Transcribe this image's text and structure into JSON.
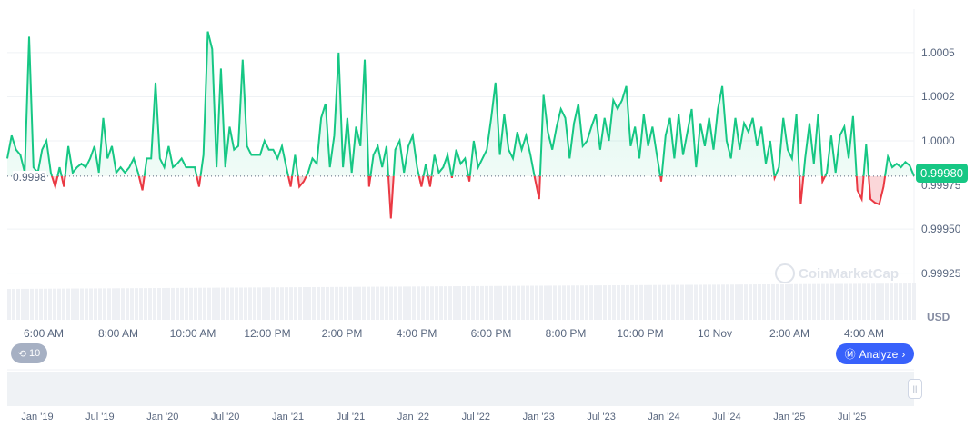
{
  "chart_data": {
    "type": "line",
    "currency_label": "USD",
    "current_price": "0.99980",
    "baseline_label": "0.9998",
    "baseline": 0.9998,
    "ylim": [
      0.99908,
      1.00068
    ],
    "y_ticks": [
      {
        "value": 1.0005,
        "label": "1.0005"
      },
      {
        "value": 1.00025,
        "label": "1.0002"
      },
      {
        "value": 1.0,
        "label": "1.0000"
      },
      {
        "value": 0.99975,
        "label": "0.99975"
      },
      {
        "value": 0.9995,
        "label": "0.99950"
      },
      {
        "value": 0.99925,
        "label": "0.99925"
      }
    ],
    "x_tick_labels": [
      "6:00 AM",
      "8:00 AM",
      "10:00 AM",
      "12:00 PM",
      "2:00 PM",
      "4:00 PM",
      "6:00 PM",
      "8:00 PM",
      "10:00 PM",
      "10 Nov",
      "2:00 AM",
      "4:00 AM"
    ],
    "navigator_labels": [
      "Jan '19",
      "Jul '19",
      "Jan '20",
      "Jul '20",
      "Jan '21",
      "Jul '21",
      "Jan '22",
      "Jul '22",
      "Jan '23",
      "Jul '23",
      "Jan '24",
      "Jul '24",
      "Jan '25",
      "Jul '25"
    ],
    "colors": {
      "up": "#16c784",
      "down": "#ea3943",
      "accent": "#3861fb"
    },
    "values": [
      0.9999,
      1.00003,
      0.99995,
      0.99992,
      0.99982,
      1.00059,
      0.99985,
      0.99982,
      0.99995,
      1.0,
      0.99982,
      0.99974,
      0.99985,
      0.99974,
      0.99997,
      0.99982,
      0.99985,
      0.99987,
      0.99985,
      0.9999,
      0.99997,
      0.99982,
      1.00013,
      0.9999,
      0.99997,
      0.99982,
      0.99985,
      0.99982,
      0.99985,
      0.9999,
      0.99982,
      0.99972,
      0.9999,
      0.9999,
      1.00033,
      0.9999,
      0.99985,
      0.99997,
      0.99985,
      0.99987,
      0.9999,
      0.99985,
      0.99985,
      0.99985,
      0.99974,
      0.99992,
      1.00062,
      1.00052,
      0.99985,
      1.00041,
      0.99985,
      1.00008,
      0.99995,
      0.99997,
      1.00046,
      0.99997,
      0.99992,
      0.99992,
      0.99992,
      1.0,
      0.99995,
      0.99995,
      0.9999,
      0.99997,
      0.99985,
      0.99974,
      0.99992,
      0.99974,
      0.99977,
      0.99982,
      0.9999,
      0.99987,
      1.00013,
      1.00021,
      0.99985,
      1.00003,
      1.0005,
      0.99985,
      1.00013,
      0.99982,
      1.00008,
      0.99997,
      1.00046,
      0.99974,
      0.99992,
      0.99997,
      0.99985,
      0.99997,
      0.99956,
      0.99995,
      1.0,
      0.99982,
      0.99997,
      1.00003,
      0.99985,
      0.99974,
      0.99987,
      0.99974,
      0.99992,
      0.99982,
      0.99985,
      0.99992,
      0.99979,
      0.99995,
      0.99987,
      0.9999,
      0.99977,
      1.0,
      0.99985,
      0.9999,
      0.99995,
      1.00013,
      1.00033,
      0.99992,
      1.00015,
      0.99995,
      0.9999,
      1.00005,
      0.99995,
      1.00003,
      0.99992,
      0.99979,
      0.99967,
      1.00026,
      1.00005,
      0.99995,
      1.00008,
      1.00018,
      1.00013,
      0.9999,
      1.0001,
      1.00021,
      0.99997,
      1.0,
      1.00008,
      1.00015,
      0.99995,
      1.00013,
      1.0,
      1.00023,
      1.00018,
      1.00023,
      1.00031,
      0.99997,
      1.00008,
      0.9999,
      1.00015,
      0.99997,
      1.00008,
      0.99992,
      0.99977,
      1.00003,
      1.00013,
      0.9999,
      1.00015,
      0.99992,
      1.00005,
      1.00018,
      0.99985,
      1.0001,
      0.99997,
      1.00013,
      0.99995,
      1.00018,
      1.00031,
      1.0,
      0.9999,
      1.00013,
      0.99995,
      1.0001,
      1.00005,
      1.00013,
      0.99997,
      1.00008,
      0.99987,
      1.0,
      0.99979,
      0.99985,
      1.00013,
      0.99995,
      0.9999,
      1.00015,
      0.99964,
      0.9999,
      1.0001,
      0.99987,
      1.00015,
      0.99977,
      0.99982,
      1.00003,
      0.99982,
      1.00003,
      1.00008,
      0.9999,
      1.00014,
      0.99972,
      0.99967,
      0.99998,
      0.99967,
      0.99965,
      0.99964,
      0.99974,
      0.99991,
      0.99985,
      0.99987,
      0.99985,
      0.99988,
      0.99986,
      0.9998
    ]
  },
  "controls": {
    "history_count": "10",
    "analyze_label": "Analyze",
    "watermark": "CoinMarketCap"
  }
}
